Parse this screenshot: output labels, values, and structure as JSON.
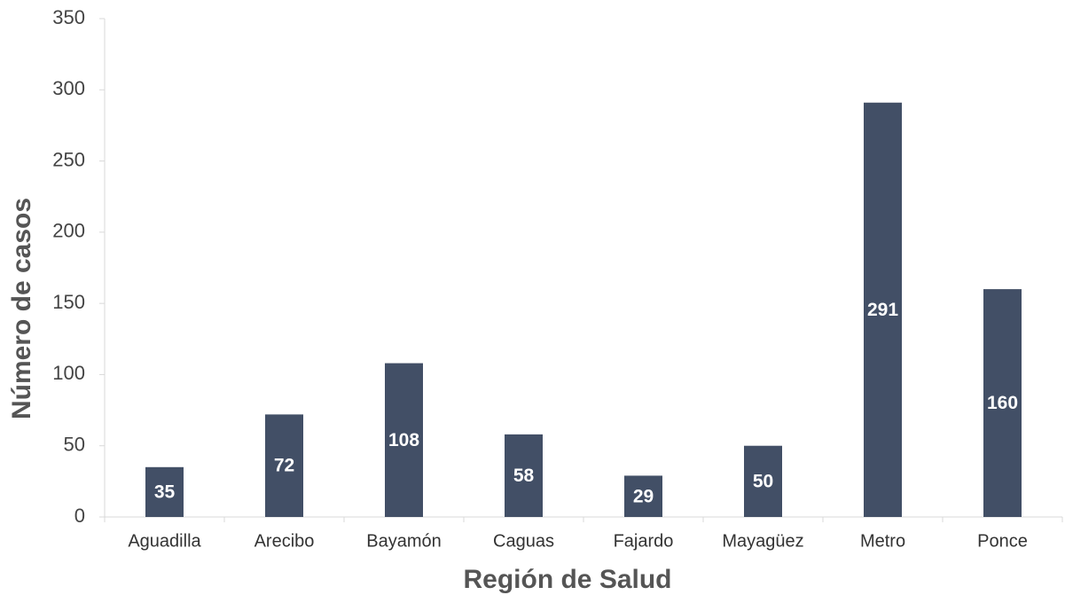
{
  "chart_data": {
    "type": "bar",
    "x_label": "Región de Salud",
    "y_label": "Número de casos",
    "categories": [
      "Aguadilla",
      "Arecibo",
      "Bayamón",
      "Caguas",
      "Fajardo",
      "Mayagüez",
      "Metro",
      "Ponce"
    ],
    "values": [
      35,
      72,
      108,
      58,
      29,
      50,
      291,
      160
    ],
    "color": "#424f66",
    "ylim": [
      0,
      350
    ],
    "yticks": [
      0,
      50,
      100,
      150,
      200,
      250,
      300,
      350
    ],
    "grid": false
  }
}
